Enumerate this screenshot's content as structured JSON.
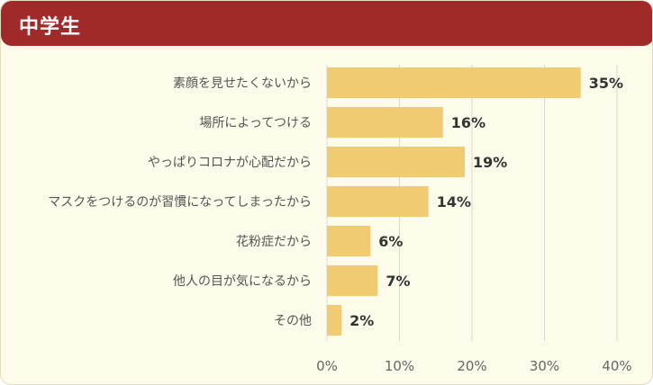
{
  "header": {
    "title": "中学生"
  },
  "colors": {
    "header_bg": "#a0292a",
    "panel_bg": "#fdfbea",
    "bar": "#f0cb72",
    "grid": "#d8d8d8"
  },
  "chart_data": {
    "type": "bar",
    "orientation": "horizontal",
    "title": "",
    "xlabel": "",
    "ylabel": "",
    "categories": [
      "素顔を見せたくないから",
      "場所によってつける",
      "やっぱりコロナが心配だから",
      "マスクをつけるのが習慣になってしまったから",
      "花粉症だから",
      "他人の目が気になるから",
      "その他"
    ],
    "values": [
      35,
      16,
      19,
      14,
      6,
      7,
      2
    ],
    "value_labels": [
      "35%",
      "16%",
      "19%",
      "14%",
      "6%",
      "7%",
      "2%"
    ],
    "xlim": [
      0,
      40
    ],
    "xticks": [
      0,
      10,
      20,
      30,
      40
    ],
    "xtick_labels": [
      "0%",
      "10%",
      "20%",
      "30%",
      "40%"
    ],
    "grid": true
  }
}
